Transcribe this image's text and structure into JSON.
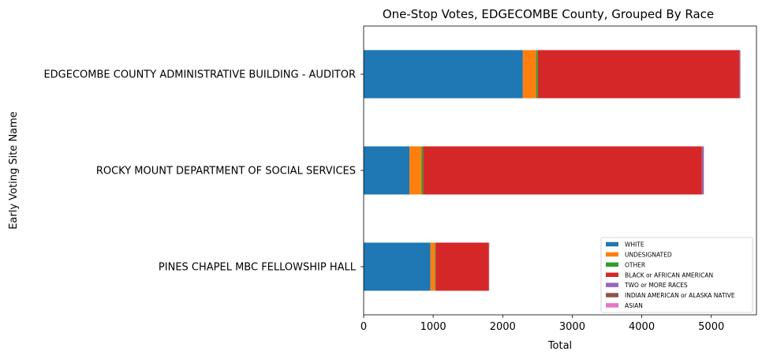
{
  "chart_data": {
    "type": "bar",
    "orientation": "horizontal",
    "stacked": true,
    "title": "One-Stop Votes, EDGECOMBE County, Grouped By Race",
    "xlabel": "Total",
    "ylabel": "Early Voting Site Name",
    "xlim": [
      0,
      5650
    ],
    "xticks": [
      0,
      1000,
      2000,
      3000,
      4000,
      5000
    ],
    "grid": false,
    "legend_position": "lower-right",
    "categories": [
      "EDGECOMBE COUNTY ADMINISTRATIVE BUILDING - AUDITOR",
      "ROCKY MOUNT DEPARTMENT OF SOCIAL SERVICES",
      "PINES CHAPEL MBC FELLOWSHIP HALL"
    ],
    "series": [
      {
        "name": "WHITE",
        "color": "#1f77b4",
        "values": [
          2290,
          660,
          960
        ]
      },
      {
        "name": "UNDESIGNATED",
        "color": "#ff7f0e",
        "values": [
          190,
          170,
          65
        ]
      },
      {
        "name": "OTHER",
        "color": "#2ca02c",
        "values": [
          25,
          25,
          10
        ]
      },
      {
        "name": "BLACK or AFRICAN AMERICAN",
        "color": "#d62728",
        "values": [
          2900,
          4010,
          765
        ]
      },
      {
        "name": "TWO or MORE RACES",
        "color": "#9467bd",
        "values": [
          8,
          20,
          3
        ]
      },
      {
        "name": "INDIAN AMERICAN or ALASKA NATIVE",
        "color": "#8c564b",
        "values": [
          4,
          6,
          2
        ]
      },
      {
        "name": "ASIAN",
        "color": "#e377c2",
        "values": [
          3,
          4,
          2
        ]
      }
    ]
  }
}
